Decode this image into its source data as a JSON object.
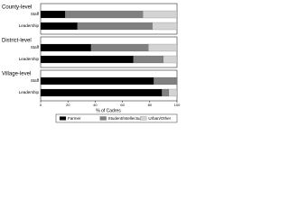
{
  "chart_data": {
    "type": "bar",
    "orientation": "horizontal",
    "stacked": true,
    "groups": [
      "County-level",
      "District-level",
      "Village-level"
    ],
    "categories": [
      "Staff",
      "Leadership",
      "Staff",
      "Leadership",
      "Staff",
      "Leadership"
    ],
    "series": [
      {
        "name": "Farmer",
        "color": "#000000",
        "values": [
          18,
          27,
          37,
          68,
          83,
          89
        ]
      },
      {
        "name": "Student/Intellectual",
        "color": "#808080",
        "values": [
          57,
          55,
          42,
          22,
          17,
          5
        ]
      },
      {
        "name": "Urban/Other",
        "color": "#d3d3d3",
        "values": [
          25,
          18,
          21,
          10,
          0,
          6
        ]
      }
    ],
    "xlabel": "% of Cadres",
    "xlim": [
      0,
      100
    ],
    "xticks": [
      0,
      20,
      40,
      60,
      80,
      100
    ],
    "legend": "bottom"
  }
}
